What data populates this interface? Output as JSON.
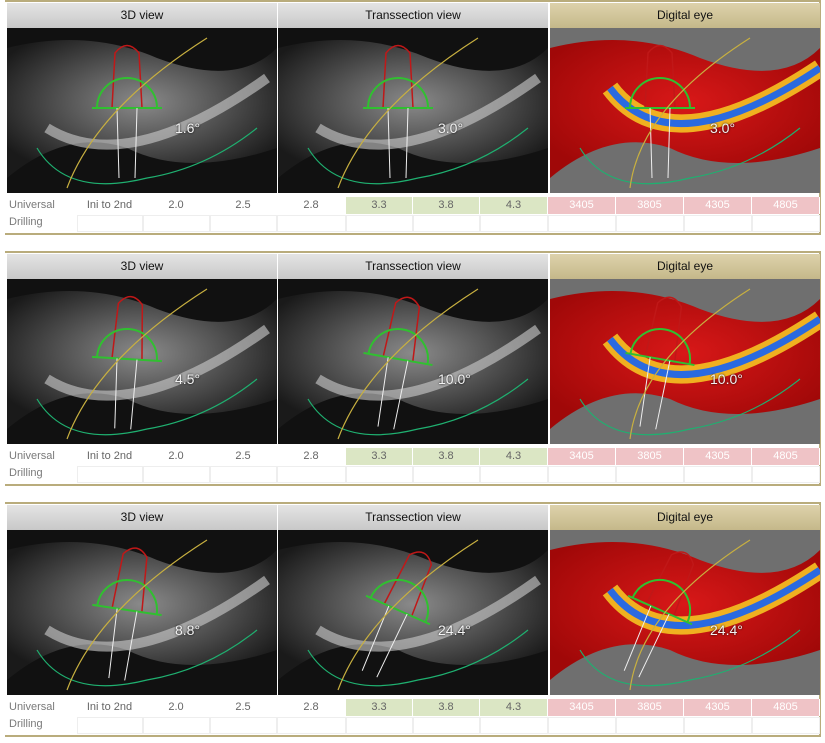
{
  "panels": [
    {
      "headers": [
        "3D view",
        "Transsection view",
        "Digital eye"
      ],
      "angles": [
        "1.6°",
        "3.0°",
        "3.0°"
      ],
      "row_label": "Universal",
      "cells": [
        "Ini to 2nd",
        "2.0",
        "2.5",
        "2.8",
        "3.3",
        "3.8",
        "4.3",
        "3405",
        "3805",
        "4305",
        "4805"
      ],
      "row2_label": "Drilling"
    },
    {
      "headers": [
        "3D view",
        "Transsection view",
        "Digital eye"
      ],
      "angles": [
        "4.5°",
        "10.0°",
        "10.0°"
      ],
      "row_label": "Universal",
      "cells": [
        "Ini to 2nd",
        "2.0",
        "2.5",
        "2.8",
        "3.3",
        "3.8",
        "4.3",
        "3405",
        "3805",
        "4305",
        "4805"
      ],
      "row2_label": "Drilling"
    },
    {
      "headers": [
        "3D view",
        "Transsection view",
        "Digital eye"
      ],
      "angles": [
        "8.8°",
        "24.4°",
        "24.4°"
      ],
      "row_label": "Universal",
      "cells": [
        "Ini to 2nd",
        "2.0",
        "2.5",
        "2.8",
        "3.3",
        "3.8",
        "4.3",
        "3405",
        "3805",
        "4305",
        "4805"
      ],
      "row2_label": "Drilling"
    }
  ]
}
